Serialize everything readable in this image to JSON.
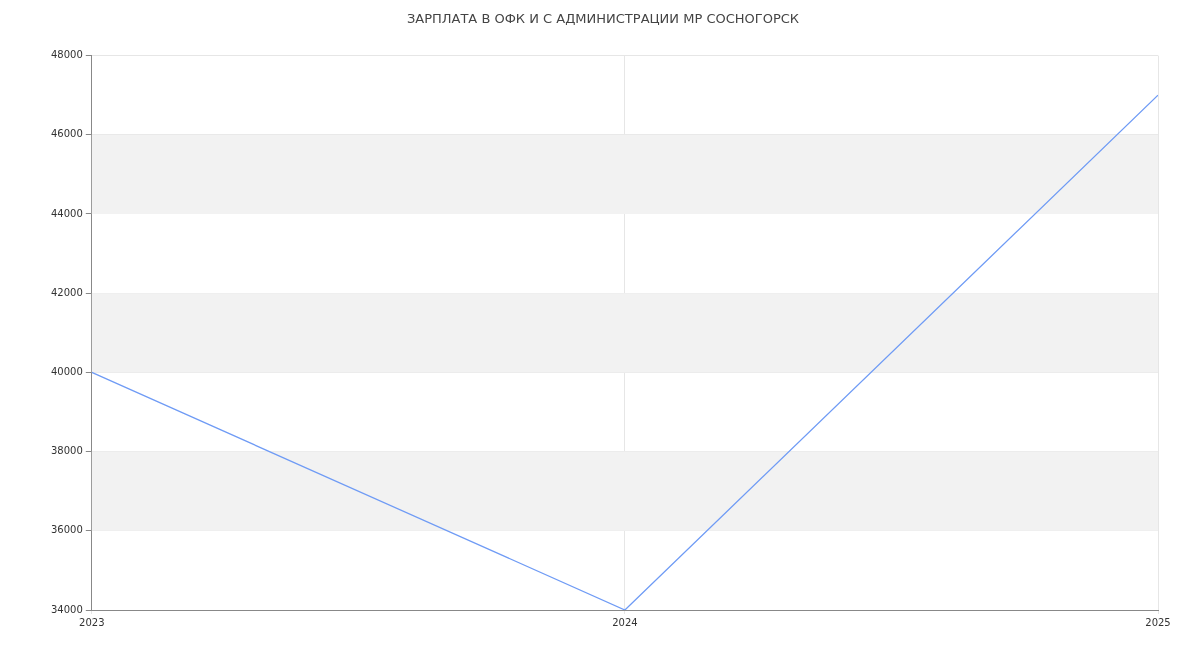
{
  "chart_data": {
    "type": "line",
    "title": "ЗАРПЛАТА В ОФК И С АДМИНИСТРАЦИИ МР СОСНОГОРСК",
    "x": [
      2023,
      2024,
      2025
    ],
    "series": [
      {
        "color": "#6f9bf5",
        "values": [
          40000,
          34000,
          47000
        ]
      }
    ],
    "xlim": [
      2023,
      2025
    ],
    "xticks": [
      2023,
      2024,
      2025
    ],
    "ylim": [
      34000,
      48000
    ],
    "yticks": [
      34000,
      36000,
      38000,
      40000,
      42000,
      44000,
      46000,
      48000
    ],
    "grid": true,
    "marker": "none",
    "line_style": "solid"
  }
}
